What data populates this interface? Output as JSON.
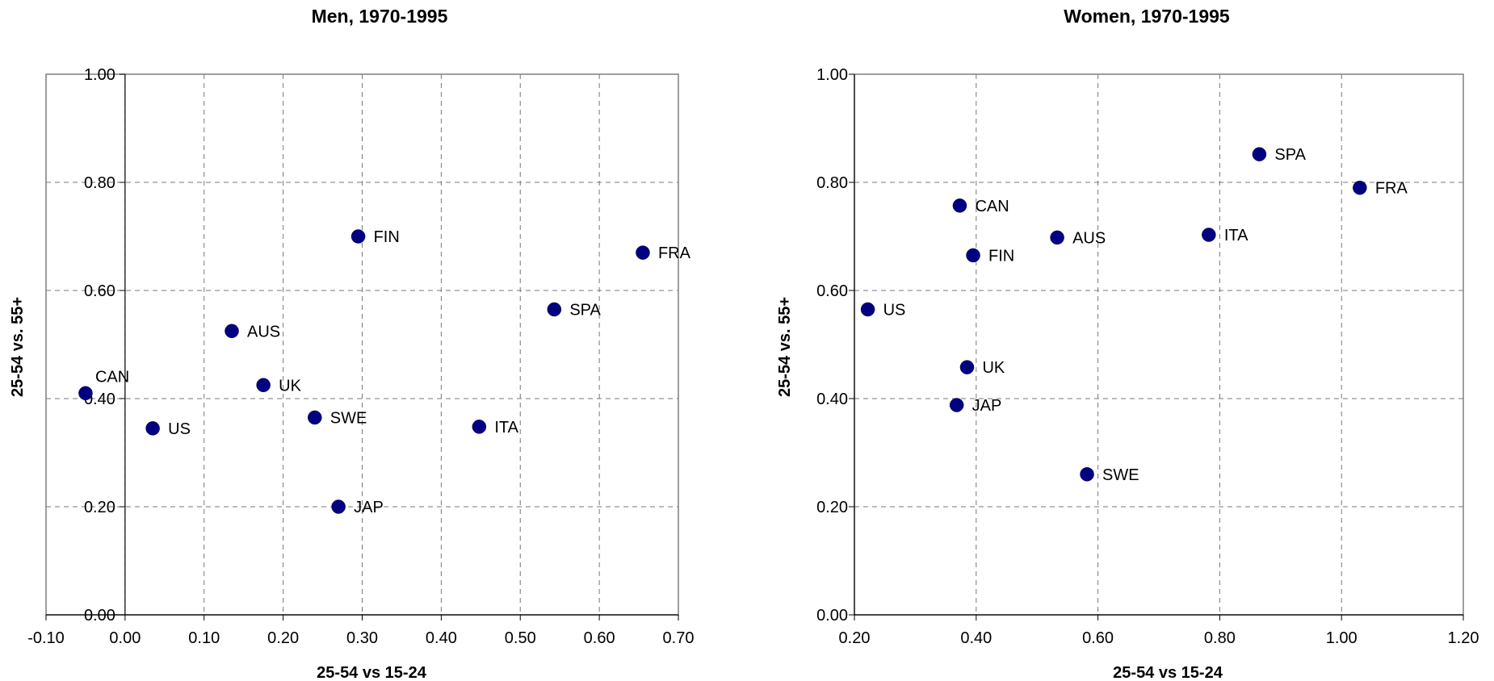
{
  "chart_data": [
    {
      "type": "scatter",
      "title": "Men, 1970-1995",
      "xlabel": "25-54 vs 15-24",
      "ylabel": "25-54 vs. 55+",
      "xlim": [
        -0.1,
        0.7
      ],
      "ylim": [
        0.0,
        1.0
      ],
      "xticks": [
        "-0.10",
        "0.00",
        "0.10",
        "0.20",
        "0.30",
        "0.40",
        "0.50",
        "0.60",
        "0.70"
      ],
      "yticks": [
        "0.00",
        "0.20",
        "0.40",
        "0.60",
        "0.80",
        "1.00"
      ],
      "grid": true,
      "marker_color": "#000080",
      "points": [
        {
          "label": "CAN",
          "x": -0.05,
          "y": 0.41
        },
        {
          "label": "US",
          "x": 0.035,
          "y": 0.345
        },
        {
          "label": "AUS",
          "x": 0.135,
          "y": 0.525
        },
        {
          "label": "UK",
          "x": 0.175,
          "y": 0.425
        },
        {
          "label": "SWE",
          "x": 0.24,
          "y": 0.365
        },
        {
          "label": "JAP",
          "x": 0.27,
          "y": 0.2
        },
        {
          "label": "FIN",
          "x": 0.295,
          "y": 0.7
        },
        {
          "label": "ITA",
          "x": 0.448,
          "y": 0.348
        },
        {
          "label": "SPA",
          "x": 0.543,
          "y": 0.565
        },
        {
          "label": "FRA",
          "x": 0.655,
          "y": 0.67
        }
      ]
    },
    {
      "type": "scatter",
      "title": "Women, 1970-1995",
      "xlabel": "25-54 vs 15-24",
      "ylabel": "25-54 vs. 55+",
      "xlim": [
        0.2,
        1.2
      ],
      "ylim": [
        0.0,
        1.0
      ],
      "xticks": [
        "0.20",
        "0.40",
        "0.60",
        "0.80",
        "1.00",
        "1.20"
      ],
      "yticks": [
        "0.00",
        "0.20",
        "0.40",
        "0.60",
        "0.80",
        "1.00"
      ],
      "grid": true,
      "marker_color": "#000080",
      "points": [
        {
          "label": "US",
          "x": 0.222,
          "y": 0.565
        },
        {
          "label": "CAN",
          "x": 0.373,
          "y": 0.757
        },
        {
          "label": "FIN",
          "x": 0.395,
          "y": 0.665
        },
        {
          "label": "UK",
          "x": 0.385,
          "y": 0.458
        },
        {
          "label": "JAP",
          "x": 0.368,
          "y": 0.388
        },
        {
          "label": "AUS",
          "x": 0.533,
          "y": 0.698
        },
        {
          "label": "SWE",
          "x": 0.582,
          "y": 0.26
        },
        {
          "label": "ITA",
          "x": 0.782,
          "y": 0.703
        },
        {
          "label": "SPA",
          "x": 0.865,
          "y": 0.852
        },
        {
          "label": "FRA",
          "x": 1.03,
          "y": 0.79
        }
      ]
    }
  ]
}
